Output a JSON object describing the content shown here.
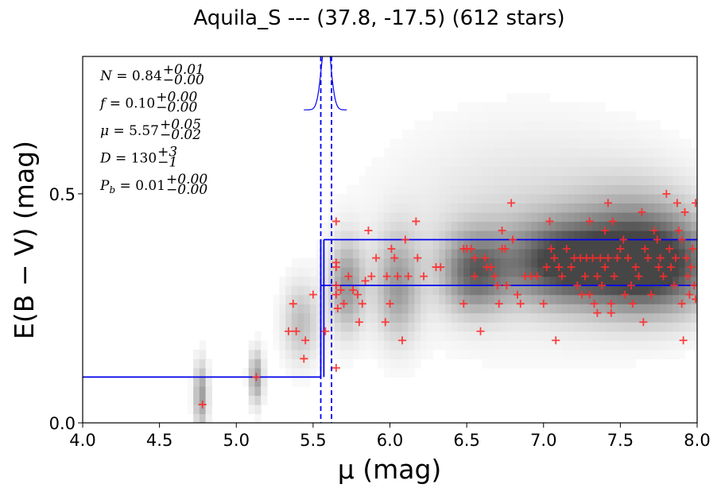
{
  "chart_data": {
    "type": "scatter",
    "title": "Aquila_S --- (37.8, -17.5) (612 stars)",
    "xlabel": "μ (mag)",
    "ylabel": "E(B − V) (mag)",
    "xlim": [
      4.0,
      8.0
    ],
    "ylim": [
      0.0,
      0.8
    ],
    "xticks": [
      "4.0",
      "4.5",
      "5.0",
      "5.5",
      "6.0",
      "6.5",
      "7.0",
      "7.5",
      "8.0"
    ],
    "yticks": [
      "0.0",
      "0.5"
    ],
    "grid": false,
    "annotations": [
      {
        "lhs": "N = 0.84",
        "sup": "+0.01",
        "sub": "−0.00"
      },
      {
        "lhs": "f = 0.10",
        "sup": "+0.00",
        "sub": "−0.00"
      },
      {
        "lhs": "μ = 5.57",
        "sup": "+0.05",
        "sub": "−0.02"
      },
      {
        "lhs": "D = 130",
        "sup": "+3",
        "sub": "−1"
      },
      {
        "lhs": "P_b = 0.01",
        "sup": "+0.00",
        "sub": "−0.00"
      }
    ],
    "colors": {
      "points": "#ff2a2a",
      "model": "#0000ee",
      "density": "#4d4d4d"
    },
    "step_model": {
      "near_ebv": 0.1,
      "far_ebv_lower": 0.3,
      "far_ebv_upper": 0.4,
      "step_mu_low": 5.55,
      "step_mu_high": 5.57,
      "mu_dashed": [
        5.55,
        5.62
      ]
    },
    "density_blobs": [
      {
        "x": 4.77,
        "y": 0.06,
        "sx": 0.03,
        "sy": 0.05,
        "w": 0.55
      },
      {
        "x": 5.13,
        "y": 0.1,
        "sx": 0.03,
        "sy": 0.04,
        "w": 0.55
      },
      {
        "x": 5.42,
        "y": 0.22,
        "sx": 0.08,
        "sy": 0.06,
        "w": 0.35
      },
      {
        "x": 5.72,
        "y": 0.3,
        "sx": 0.08,
        "sy": 0.07,
        "w": 0.55
      },
      {
        "x": 6.05,
        "y": 0.3,
        "sx": 0.1,
        "sy": 0.08,
        "w": 0.5
      },
      {
        "x": 6.55,
        "y": 0.33,
        "sx": 0.15,
        "sy": 0.06,
        "w": 0.7
      },
      {
        "x": 7.1,
        "y": 0.35,
        "sx": 0.25,
        "sy": 0.06,
        "w": 0.8
      },
      {
        "x": 7.7,
        "y": 0.34,
        "sx": 0.3,
        "sy": 0.07,
        "w": 0.9
      },
      {
        "x": 7.6,
        "y": 0.4,
        "sx": 0.3,
        "sy": 0.09,
        "w": 0.4
      },
      {
        "x": 6.9,
        "y": 0.42,
        "sx": 0.6,
        "sy": 0.15,
        "w": 0.2
      }
    ],
    "points": [
      [
        4.78,
        0.04
      ],
      [
        5.13,
        0.1
      ],
      [
        5.34,
        0.2
      ],
      [
        5.37,
        0.26
      ],
      [
        5.39,
        0.2
      ],
      [
        5.44,
        0.14
      ],
      [
        5.45,
        0.18
      ],
      [
        5.5,
        0.28
      ],
      [
        5.58,
        0.2
      ],
      [
        5.65,
        0.44
      ],
      [
        5.65,
        0.35
      ],
      [
        5.65,
        0.34
      ],
      [
        5.65,
        0.3
      ],
      [
        5.65,
        0.28
      ],
      [
        5.66,
        0.25
      ],
      [
        5.65,
        0.12
      ],
      [
        5.68,
        0.29
      ],
      [
        5.7,
        0.26
      ],
      [
        5.73,
        0.32
      ],
      [
        5.76,
        0.29
      ],
      [
        5.79,
        0.28
      ],
      [
        5.8,
        0.22
      ],
      [
        5.82,
        0.26
      ],
      [
        5.84,
        0.31
      ],
      [
        5.86,
        0.42
      ],
      [
        5.88,
        0.32
      ],
      [
        5.91,
        0.36
      ],
      [
        5.97,
        0.22
      ],
      [
        5.98,
        0.32
      ],
      [
        6.0,
        0.26
      ],
      [
        6.01,
        0.38
      ],
      [
        6.03,
        0.36
      ],
      [
        6.05,
        0.32
      ],
      [
        6.08,
        0.18
      ],
      [
        6.1,
        0.4
      ],
      [
        6.12,
        0.32
      ],
      [
        6.17,
        0.44
      ],
      [
        6.18,
        0.36
      ],
      [
        6.22,
        0.32
      ],
      [
        6.3,
        0.34
      ],
      [
        6.33,
        0.34
      ],
      [
        6.48,
        0.38
      ],
      [
        6.48,
        0.26
      ],
      [
        6.5,
        0.38
      ],
      [
        6.53,
        0.38
      ],
      [
        6.55,
        0.36
      ],
      [
        6.55,
        0.32
      ],
      [
        6.59,
        0.2
      ],
      [
        6.62,
        0.36
      ],
      [
        6.63,
        0.34
      ],
      [
        6.66,
        0.34
      ],
      [
        6.68,
        0.32
      ],
      [
        6.7,
        0.3
      ],
      [
        6.71,
        0.26
      ],
      [
        6.73,
        0.42
      ],
      [
        6.73,
        0.38
      ],
      [
        6.75,
        0.38
      ],
      [
        6.76,
        0.3
      ],
      [
        6.79,
        0.48
      ],
      [
        6.8,
        0.4
      ],
      [
        6.83,
        0.28
      ],
      [
        6.85,
        0.26
      ],
      [
        6.88,
        0.32
      ],
      [
        6.92,
        0.32
      ],
      [
        6.96,
        0.32
      ],
      [
        7.0,
        0.26
      ],
      [
        7.02,
        0.34
      ],
      [
        7.04,
        0.44
      ],
      [
        7.05,
        0.38
      ],
      [
        7.07,
        0.36
      ],
      [
        7.08,
        0.18
      ],
      [
        7.1,
        0.34
      ],
      [
        7.12,
        0.32
      ],
      [
        7.15,
        0.38
      ],
      [
        7.18,
        0.34
      ],
      [
        7.2,
        0.36
      ],
      [
        7.22,
        0.3
      ],
      [
        7.24,
        0.36
      ],
      [
        7.25,
        0.28
      ],
      [
        7.27,
        0.32
      ],
      [
        7.28,
        0.36
      ],
      [
        7.3,
        0.44
      ],
      [
        7.3,
        0.28
      ],
      [
        7.32,
        0.36
      ],
      [
        7.33,
        0.26
      ],
      [
        7.35,
        0.32
      ],
      [
        7.35,
        0.24
      ],
      [
        7.37,
        0.36
      ],
      [
        7.38,
        0.3
      ],
      [
        7.4,
        0.42
      ],
      [
        7.4,
        0.34
      ],
      [
        7.42,
        0.48
      ],
      [
        7.42,
        0.36
      ],
      [
        7.44,
        0.26
      ],
      [
        7.44,
        0.24
      ],
      [
        7.45,
        0.44
      ],
      [
        7.46,
        0.32
      ],
      [
        7.48,
        0.36
      ],
      [
        7.5,
        0.38
      ],
      [
        7.52,
        0.4
      ],
      [
        7.53,
        0.28
      ],
      [
        7.55,
        0.36
      ],
      [
        7.57,
        0.3
      ],
      [
        7.58,
        0.26
      ],
      [
        7.6,
        0.34
      ],
      [
        7.62,
        0.32
      ],
      [
        7.64,
        0.46
      ],
      [
        7.65,
        0.22
      ],
      [
        7.66,
        0.38
      ],
      [
        7.68,
        0.36
      ],
      [
        7.7,
        0.28
      ],
      [
        7.72,
        0.42
      ],
      [
        7.74,
        0.4
      ],
      [
        7.75,
        0.34
      ],
      [
        7.76,
        0.36
      ],
      [
        7.78,
        0.32
      ],
      [
        7.8,
        0.5
      ],
      [
        7.82,
        0.38
      ],
      [
        7.83,
        0.34
      ],
      [
        7.85,
        0.3
      ],
      [
        7.86,
        0.36
      ],
      [
        7.87,
        0.48
      ],
      [
        7.88,
        0.42
      ],
      [
        7.9,
        0.4
      ],
      [
        7.9,
        0.26
      ],
      [
        7.91,
        0.18
      ],
      [
        7.92,
        0.46
      ],
      [
        7.93,
        0.36
      ],
      [
        7.94,
        0.32
      ],
      [
        7.95,
        0.28
      ],
      [
        7.96,
        0.34
      ],
      [
        7.97,
        0.38
      ],
      [
        7.98,
        0.3
      ],
      [
        7.99,
        0.48
      ],
      [
        7.99,
        0.27
      ]
    ]
  }
}
